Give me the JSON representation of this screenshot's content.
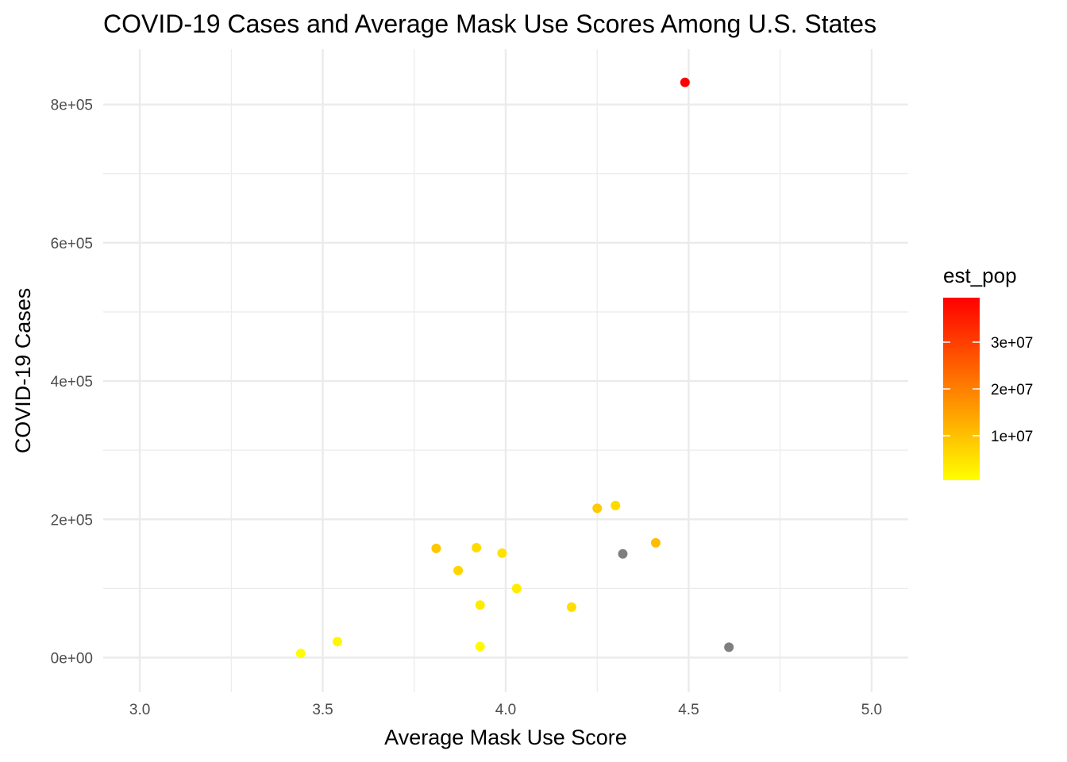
{
  "chart_data": {
    "type": "scatter",
    "title": "COVID-19 Cases and Average Mask Use Scores Among U.S. States",
    "xlabel": "Average Mask Use Score",
    "ylabel": "COVID-19 Cases",
    "xlim": [
      2.9,
      5.1
    ],
    "ylim": [
      -50000,
      880000
    ],
    "x_ticks": [
      3.0,
      3.5,
      4.0,
      4.5,
      5.0
    ],
    "x_tick_labels": [
      "3.0",
      "3.5",
      "4.0",
      "4.5",
      "5.0"
    ],
    "y_ticks": [
      0,
      200000,
      400000,
      600000,
      800000
    ],
    "y_tick_labels": [
      "0e+00",
      "2e+05",
      "4e+05",
      "6e+05",
      "8e+05"
    ],
    "grid": true,
    "legend": {
      "title": "est_pop",
      "placement": "right",
      "type": "colorbar",
      "range": [
        500000,
        39500000
      ],
      "ticks": [
        10000000,
        20000000,
        30000000
      ],
      "tick_labels": [
        "1e+07",
        "2e+07",
        "3e+07"
      ],
      "color_low": "#ffff00",
      "color_high": "#ff0000",
      "na_color": "#7f7f7f"
    },
    "points": [
      {
        "x": 4.49,
        "y": 832000,
        "pop": 39500000
      },
      {
        "x": 3.44,
        "y": 6000,
        "pop": 700000
      },
      {
        "x": 3.54,
        "y": 23000,
        "pop": 1800000
      },
      {
        "x": 3.81,
        "y": 158000,
        "pop": 9000000
      },
      {
        "x": 3.87,
        "y": 126000,
        "pop": 7000000
      },
      {
        "x": 3.92,
        "y": 159000,
        "pop": 5800000
      },
      {
        "x": 3.93,
        "y": 76000,
        "pop": 3500000
      },
      {
        "x": 3.93,
        "y": 16000,
        "pop": 1300000
      },
      {
        "x": 3.99,
        "y": 151000,
        "pop": 5000000
      },
      {
        "x": 4.03,
        "y": 100000,
        "pop": 3200000
      },
      {
        "x": 4.18,
        "y": 73000,
        "pop": 5600000
      },
      {
        "x": 4.25,
        "y": 216000,
        "pop": 8600000
      },
      {
        "x": 4.3,
        "y": 220000,
        "pop": 6100000
      },
      {
        "x": 4.32,
        "y": 150000,
        "pop": null
      },
      {
        "x": 4.41,
        "y": 166000,
        "pop": 10600000
      },
      {
        "x": 4.61,
        "y": 15000,
        "pop": null
      }
    ]
  }
}
